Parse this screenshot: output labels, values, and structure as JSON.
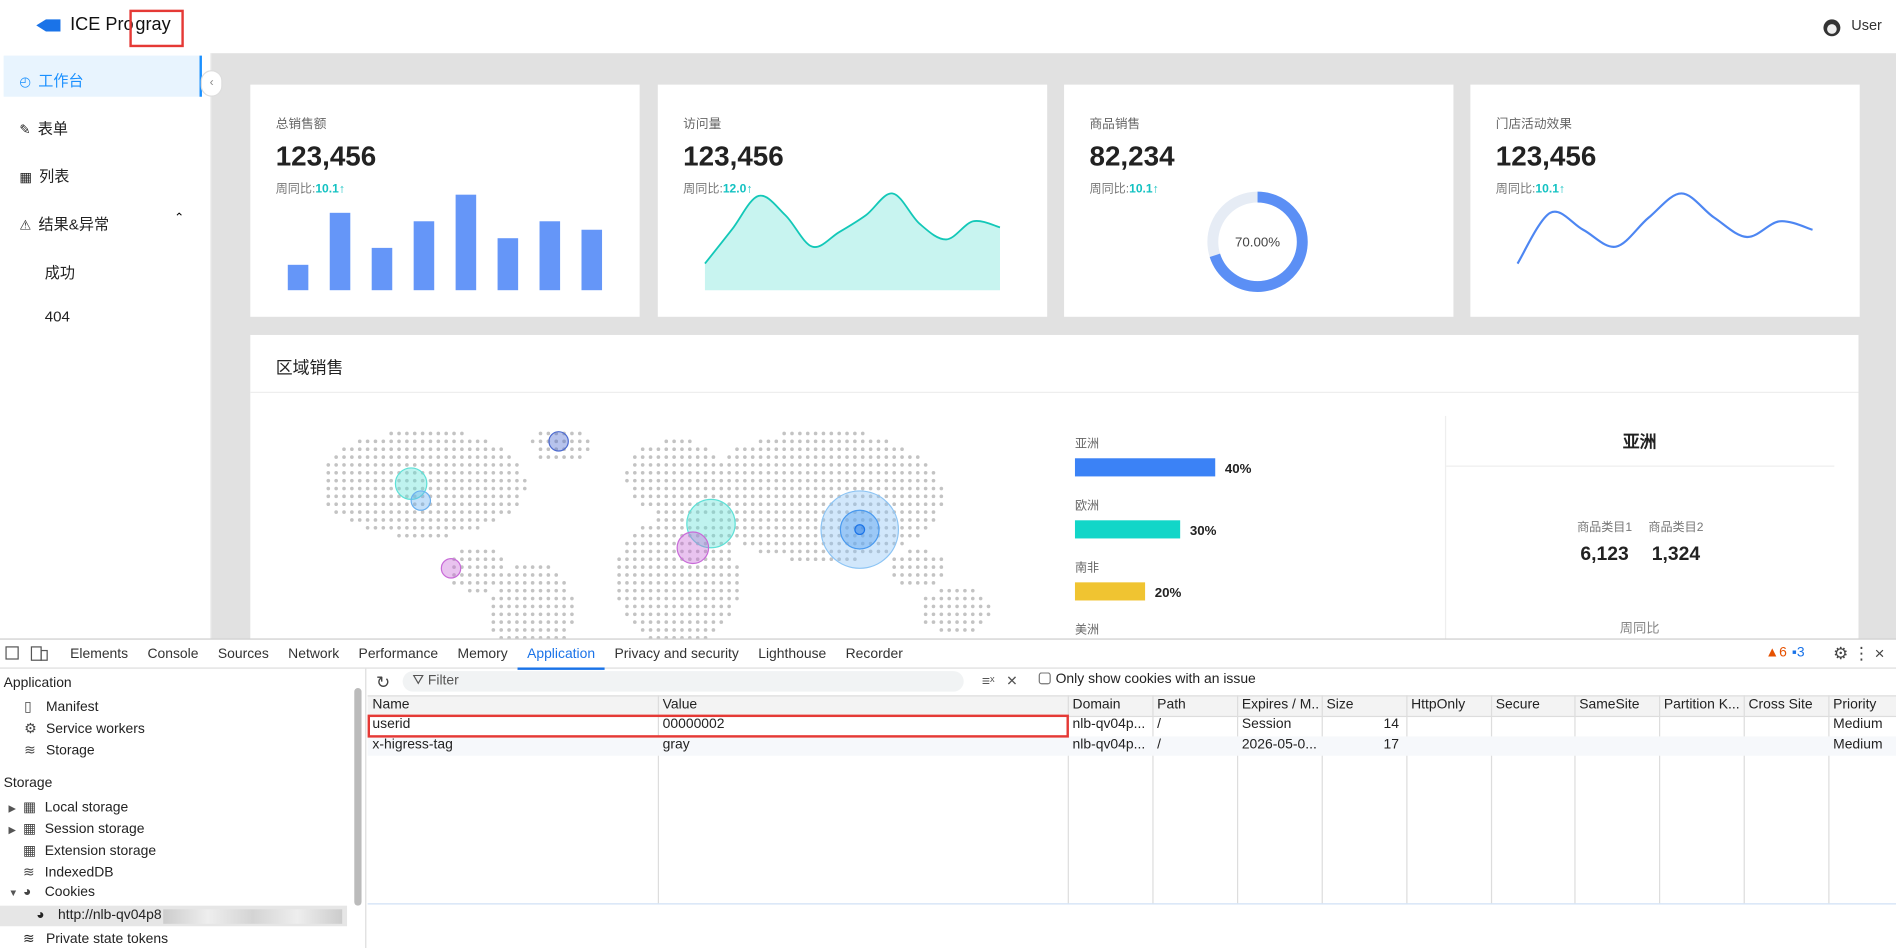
{
  "header": {
    "logo": "ICE Pro",
    "tag": "gray",
    "user": "User"
  },
  "sidebar": {
    "items": [
      "工作台",
      "表单",
      "列表",
      "结果&异常"
    ],
    "subitems": [
      "成功",
      "404"
    ]
  },
  "cards": [
    {
      "title": "总销售额",
      "value": "123,456",
      "compare_label": "周同比:",
      "compare_value": "10.1↑",
      "chart": {
        "type": "bar",
        "values": [
          21,
          64,
          35,
          57,
          79,
          43,
          57,
          50
        ],
        "ylim": [
          0,
          80
        ]
      }
    },
    {
      "title": "访问量",
      "value": "123,456",
      "compare_label": "周同比:",
      "compare_value": "12.0↑",
      "chart": {
        "type": "area",
        "values": [
          22,
          50,
          78,
          62,
          36,
          48,
          62,
          80,
          55,
          42,
          57,
          52
        ],
        "ylim": [
          0,
          90
        ]
      }
    },
    {
      "title": "商品销售",
      "value": "82,234",
      "compare_label": "周同比:",
      "compare_value": "10.1↑",
      "chart": {
        "type": "donut",
        "value": 70,
        "label": "70.00%"
      }
    },
    {
      "title": "门店活动效果",
      "value": "123,456",
      "compare_label": "周同比:",
      "compare_value": "10.1↑",
      "chart": {
        "type": "line",
        "values": [
          22,
          64,
          50,
          36,
          60,
          80,
          60,
          44,
          57,
          50
        ],
        "ylim": [
          0,
          90
        ]
      }
    }
  ],
  "region": {
    "title": "区域销售",
    "legend": [
      {
        "name": "亚洲",
        "value": 40,
        "label": "40%",
        "color": "#3b82f6"
      },
      {
        "name": "欧洲",
        "value": 30,
        "label": "30%",
        "color": "#12d6c8"
      },
      {
        "name": "南非",
        "value": 20,
        "label": "20%",
        "color": "#f0c431"
      },
      {
        "name": "美洲"
      }
    ],
    "panel": {
      "title": "亚洲",
      "items": [
        {
          "label": "商品类目1",
          "value": "6,123"
        },
        {
          "label": "商品类目2",
          "value": "1,324"
        }
      ],
      "footer": "周同比"
    }
  },
  "devtools": {
    "tabs": [
      "Elements",
      "Console",
      "Sources",
      "Network",
      "Performance",
      "Memory",
      "Application",
      "Privacy and security",
      "Lighthouse",
      "Recorder"
    ],
    "active": 6,
    "warnings": "6",
    "messages": "3",
    "tree": [
      {
        "title": "Application",
        "items": [
          "Manifest",
          "Service workers",
          "Storage"
        ]
      },
      {
        "title": "Storage",
        "items": [
          "Local storage",
          "Session storage",
          "Extension storage",
          "IndexedDB",
          "Cookies"
        ]
      }
    ],
    "cookie_url": "http://nlb-qv04p8",
    "private_tokens": "Private state tokens",
    "filter": "Filter",
    "issue_checkbox": "Only show cookies with an issue",
    "columns": [
      "Name",
      "Value",
      "Domain",
      "Path",
      "Expires / M...",
      "Size",
      "HttpOnly",
      "Secure",
      "SameSite",
      "Partition K...",
      "Cross Site",
      "Priority"
    ],
    "rows": [
      {
        "name": "userid",
        "value": "00000002",
        "domain": "nlb-qv04p...",
        "path": "/",
        "expires": "Session",
        "size": 14,
        "priority": "Medium"
      },
      {
        "name": "x-higress-tag",
        "value": "gray",
        "domain": "nlb-qv04p...",
        "path": "/",
        "expires": "2026-05-0...",
        "size": 17,
        "priority": "Medium"
      }
    ]
  }
}
